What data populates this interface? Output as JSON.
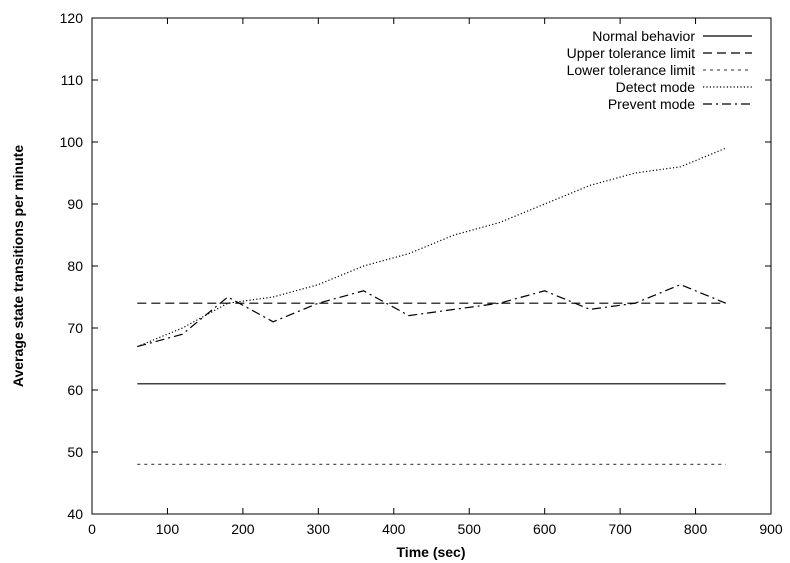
{
  "chart_data": {
    "type": "line",
    "title": "",
    "xlabel": "Time (sec)",
    "ylabel": "Average state transitions per minute",
    "xlim": [
      0,
      900
    ],
    "ylim": [
      40,
      120
    ],
    "xticks": [
      "0",
      "100",
      "200",
      "300",
      "400",
      "500",
      "600",
      "700",
      "800",
      "900"
    ],
    "yticks": [
      "40",
      "50",
      "60",
      "70",
      "80",
      "90",
      "100",
      "110",
      "120"
    ],
    "grid": false,
    "legend_position": "top-right",
    "series": [
      {
        "name": "Normal behavior",
        "style": "solid",
        "color": "#000000",
        "x": [
          60,
          840
        ],
        "y": [
          61,
          61
        ]
      },
      {
        "name": "Upper tolerance limit",
        "style": "dashed",
        "color": "#000000",
        "x": [
          60,
          840
        ],
        "y": [
          74,
          74
        ]
      },
      {
        "name": "Lower tolerance limit",
        "style": "short-dashed",
        "color": "#555555",
        "x": [
          60,
          840
        ],
        "y": [
          48,
          48
        ]
      },
      {
        "name": "Detect mode",
        "style": "dotted",
        "color": "#000000",
        "x": [
          60,
          120,
          180,
          240,
          300,
          360,
          420,
          480,
          540,
          600,
          660,
          720,
          780,
          840
        ],
        "y": [
          67,
          70,
          74,
          75,
          77,
          80,
          82,
          85,
          87,
          90,
          93,
          95,
          96,
          99
        ]
      },
      {
        "name": "Prevent mode",
        "style": "dash-dot",
        "color": "#000000",
        "x": [
          60,
          120,
          180,
          240,
          300,
          360,
          420,
          480,
          540,
          600,
          660,
          720,
          780,
          840
        ],
        "y": [
          67,
          69,
          75,
          71,
          74,
          76,
          72,
          73,
          74,
          76,
          73,
          74,
          77,
          74
        ]
      }
    ]
  }
}
